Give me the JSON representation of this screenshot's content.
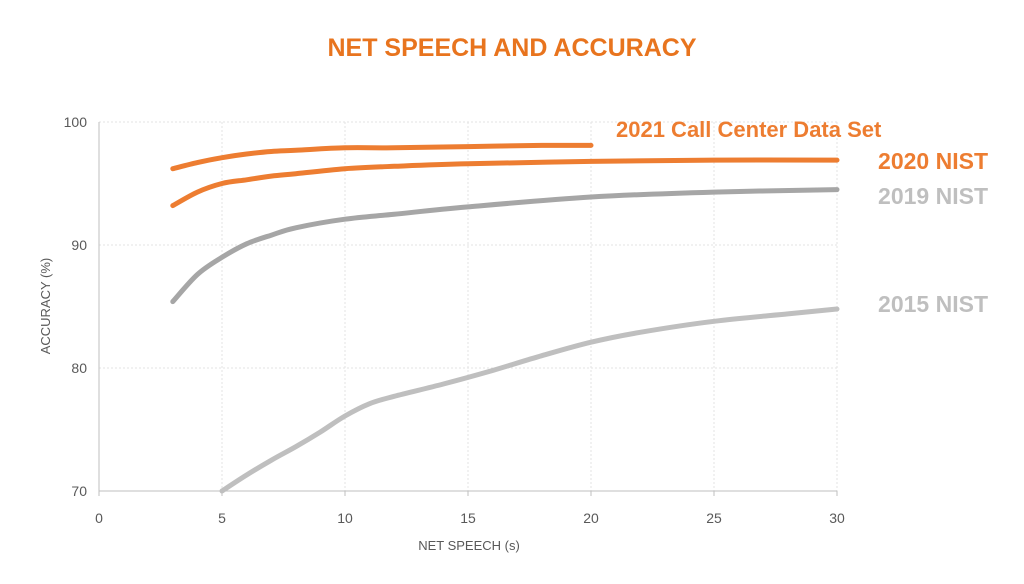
{
  "chart_data": {
    "type": "line",
    "title": "NET SPEECH AND ACCURACY",
    "xlabel": "NET SPEECH (s)",
    "ylabel": "ACCURACY (%)",
    "xlim": [
      0,
      30
    ],
    "ylim": [
      70,
      100
    ],
    "xticks": [
      0,
      5,
      10,
      15,
      20,
      25,
      30
    ],
    "yticks": [
      70,
      80,
      90,
      100
    ],
    "grid": true,
    "legend": "inline labels at line ends",
    "colors": {
      "title": "#E8741E",
      "orange": "#ED7D31",
      "gray": "#BFBFBF",
      "darkgray": "#A6A6A6"
    },
    "series": [
      {
        "name": "2021 Call Center Data Set",
        "color": "#ED7D31",
        "label_color": "#ED7D31",
        "x": [
          3,
          4,
          5,
          6,
          7,
          8,
          10,
          12,
          15,
          18,
          20
        ],
        "y": [
          96.2,
          96.7,
          97.1,
          97.4,
          97.6,
          97.7,
          97.9,
          97.9,
          98.0,
          98.1,
          98.1
        ]
      },
      {
        "name": "2020 NIST",
        "color": "#ED7D31",
        "label_color": "#ED7D31",
        "x": [
          3,
          4,
          5,
          6,
          7,
          8,
          10,
          12,
          15,
          20,
          25,
          30
        ],
        "y": [
          93.2,
          94.3,
          95.0,
          95.3,
          95.6,
          95.8,
          96.2,
          96.4,
          96.6,
          96.8,
          96.9,
          96.9
        ]
      },
      {
        "name": "2019 NIST",
        "color": "#A6A6A6",
        "label_color": "#BFBFBF",
        "x": [
          3,
          4,
          5,
          6,
          7,
          8,
          10,
          12,
          15,
          20,
          25,
          30
        ],
        "y": [
          85.4,
          87.6,
          89.0,
          90.1,
          90.8,
          91.4,
          92.1,
          92.5,
          93.1,
          93.9,
          94.3,
          94.5
        ]
      },
      {
        "name": "2015 NIST",
        "color": "#BFBFBF",
        "label_color": "#BFBFBF",
        "x": [
          5,
          6,
          7,
          8,
          9,
          10,
          11,
          12,
          14,
          16,
          18,
          20,
          22,
          25,
          28,
          30
        ],
        "y": [
          70.0,
          71.3,
          72.5,
          73.6,
          74.8,
          76.1,
          77.1,
          77.7,
          78.7,
          79.8,
          81.0,
          82.1,
          82.9,
          83.8,
          84.4,
          84.8
        ]
      }
    ]
  }
}
